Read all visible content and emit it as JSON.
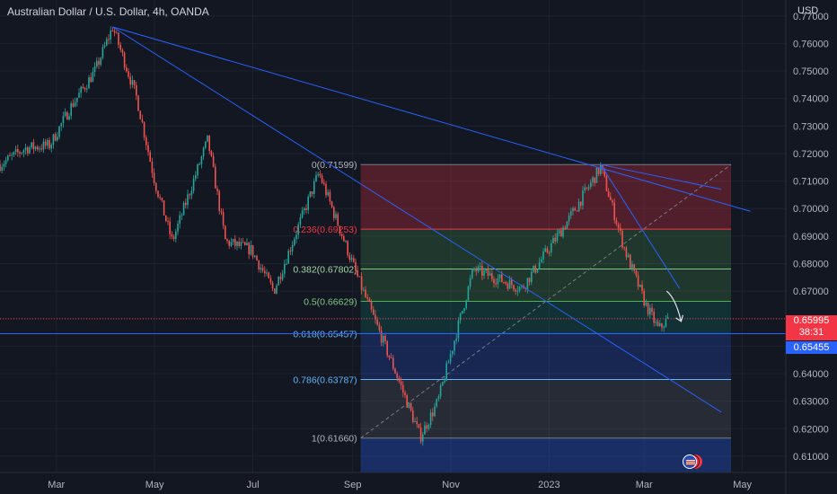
{
  "header": {
    "title": "Australian Dollar / U.S. Dollar, 4h, OANDA",
    "currency": "USD"
  },
  "price_tags": {
    "current_price": "0.65995",
    "countdown": "38:31",
    "level_price": "0.65455"
  },
  "colors": {
    "background": "#131722",
    "up": "#26a69a",
    "down": "#ef5350",
    "trendline": "#2962ff",
    "axis_text": "#b2b5be"
  },
  "chart_data": {
    "type": "candlestick",
    "symbol": "AUDUSD",
    "timeframe": "4h",
    "x_ticks": [
      "Mar",
      "May",
      "Jul",
      "Sep",
      "Nov",
      "2023",
      "Mar",
      "May"
    ],
    "y_ticks": [
      "0.77000",
      "0.76000",
      "0.75000",
      "0.74000",
      "0.73000",
      "0.72000",
      "0.71000",
      "0.70000",
      "0.69000",
      "0.68000",
      "0.67000",
      "0.66000",
      "0.65000",
      "0.64000",
      "0.63000",
      "0.62000",
      "0.61000"
    ],
    "ylim": [
      0.6041,
      0.7758
    ],
    "close_path": [
      {
        "x": "2022-01-25",
        "y": 0.716
      },
      {
        "x": "2022-02-10",
        "y": 0.722
      },
      {
        "x": "2022-02-25",
        "y": 0.723
      },
      {
        "x": "2022-03-10",
        "y": 0.737
      },
      {
        "x": "2022-03-25",
        "y": 0.75
      },
      {
        "x": "2022-04-05",
        "y": 0.766
      },
      {
        "x": "2022-04-20",
        "y": 0.74
      },
      {
        "x": "2022-05-01",
        "y": 0.71
      },
      {
        "x": "2022-05-12",
        "y": 0.688
      },
      {
        "x": "2022-06-03",
        "y": 0.725
      },
      {
        "x": "2022-06-14",
        "y": 0.688
      },
      {
        "x": "2022-06-30",
        "y": 0.685
      },
      {
        "x": "2022-07-14",
        "y": 0.67
      },
      {
        "x": "2022-08-11",
        "y": 0.713
      },
      {
        "x": "2022-09-06",
        "y": 0.672
      },
      {
        "x": "2022-09-28",
        "y": 0.64
      },
      {
        "x": "2022-10-13",
        "y": 0.617
      },
      {
        "x": "2022-10-24",
        "y": 0.63
      },
      {
        "x": "2022-11-15",
        "y": 0.678
      },
      {
        "x": "2022-12-15",
        "y": 0.671
      },
      {
        "x": "2023-01-12",
        "y": 0.695
      },
      {
        "x": "2023-02-02",
        "y": 0.715
      },
      {
        "x": "2023-02-17",
        "y": 0.685
      },
      {
        "x": "2023-03-02",
        "y": 0.665
      },
      {
        "x": "2023-03-10",
        "y": 0.656
      },
      {
        "x": "2023-03-16",
        "y": 0.66
      }
    ],
    "fibonacci": {
      "from_date": "2022-09-06",
      "to_date": "2023-04-24",
      "levels": [
        {
          "ratio": "0",
          "price": 0.71599,
          "label": "0(0.71599)"
        },
        {
          "ratio": "0.236",
          "price": 0.69253,
          "label": "0.236(0.69253)"
        },
        {
          "ratio": "0.382",
          "price": 0.67802,
          "label": "0.382(0.67802)"
        },
        {
          "ratio": "0.5",
          "price": 0.66629,
          "label": "0.5(0.66629)"
        },
        {
          "ratio": "0.618",
          "price": 0.65457,
          "label": "0.618(0.65457)"
        },
        {
          "ratio": "0.786",
          "price": 0.63787,
          "label": "0.786(0.63787)"
        },
        {
          "ratio": "1",
          "price": 0.6166,
          "label": "1(0.61660)"
        }
      ]
    },
    "trendlines": [
      {
        "from": {
          "x": "2022-04-05",
          "y": 0.766
        },
        "to": {
          "x": "2023-05-06",
          "y": 0.699
        }
      },
      {
        "from": {
          "x": "2022-04-05",
          "y": 0.766
        },
        "to": {
          "x": "2023-04-18",
          "y": 0.626
        }
      },
      {
        "from": {
          "x": "2023-02-02",
          "y": 0.716
        },
        "to": {
          "x": "2023-04-18",
          "y": 0.707
        }
      },
      {
        "from": {
          "x": "2023-02-02",
          "y": 0.716
        },
        "to": {
          "x": "2023-03-23",
          "y": 0.671
        }
      }
    ],
    "horizontal_level": 0.65455,
    "current_price": 0.65995,
    "projection_arrow": {
      "from": {
        "x": "2023-03-15",
        "y": 0.67
      },
      "to": {
        "x": "2023-03-24",
        "y": 0.659
      }
    }
  }
}
